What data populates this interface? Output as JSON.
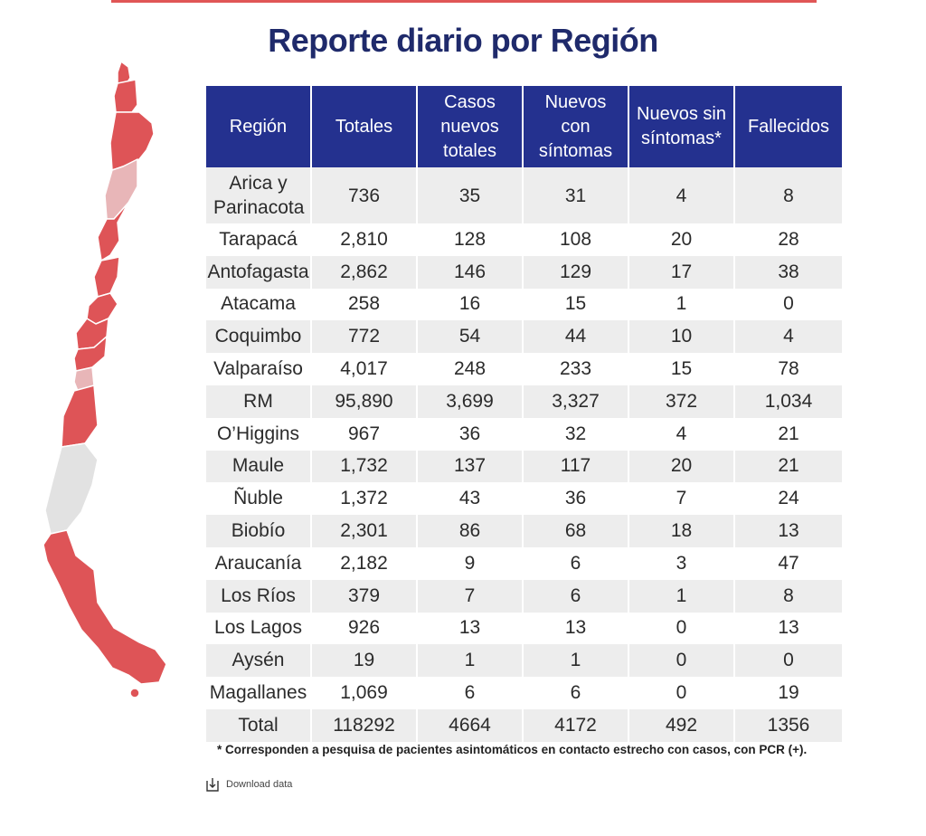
{
  "title": "Reporte diario por Región",
  "colors": {
    "header_bg": "#24318f",
    "title": "#1f2a6b",
    "map_red": "#de5457",
    "map_pink": "#e8b6b8",
    "map_gray": "#e2e2e2"
  },
  "table": {
    "headers": [
      "Región",
      "Totales",
      "Casos nuevos totales",
      "Nuevos con síntomas",
      "Nuevos sin síntomas*",
      "Fallecidos"
    ],
    "rows": [
      [
        "Arica y Parinacota",
        "736",
        "35",
        "31",
        "4",
        "8"
      ],
      [
        "Tarapacá",
        "2,810",
        "128",
        "108",
        "20",
        "28"
      ],
      [
        "Antofagasta",
        "2,862",
        "146",
        "129",
        "17",
        "38"
      ],
      [
        "Atacama",
        "258",
        "16",
        "15",
        "1",
        "0"
      ],
      [
        "Coquimbo",
        "772",
        "54",
        "44",
        "10",
        "4"
      ],
      [
        "Valparaíso",
        "4,017",
        "248",
        "233",
        "15",
        "78"
      ],
      [
        "RM",
        "95,890",
        "3,699",
        "3,327",
        "372",
        "1,034"
      ],
      [
        "O’Higgins",
        "967",
        "36",
        "32",
        "4",
        "21"
      ],
      [
        "Maule",
        "1,732",
        "137",
        "117",
        "20",
        "21"
      ],
      [
        "Ñuble",
        "1,372",
        "43",
        "36",
        "7",
        "24"
      ],
      [
        "Biobío",
        "2,301",
        "86",
        "68",
        "18",
        "13"
      ],
      [
        "Araucanía",
        "2,182",
        "9",
        "6",
        "3",
        "47"
      ],
      [
        "Los Ríos",
        "379",
        "7",
        "6",
        "1",
        "8"
      ],
      [
        "Los Lagos",
        "926",
        "13",
        "13",
        "0",
        "13"
      ],
      [
        "Aysén",
        "19",
        "1",
        "1",
        "0",
        "0"
      ],
      [
        "Magallanes",
        "1,069",
        "6",
        "6",
        "0",
        "19"
      ],
      [
        "Total",
        "118292",
        "4664",
        "4172",
        "492",
        "1356"
      ]
    ]
  },
  "footnote": "* Corresponden a pesquisa de pacientes asintomáticos en contacto estrecho con casos, con PCR (+).",
  "download_label": "Download data"
}
